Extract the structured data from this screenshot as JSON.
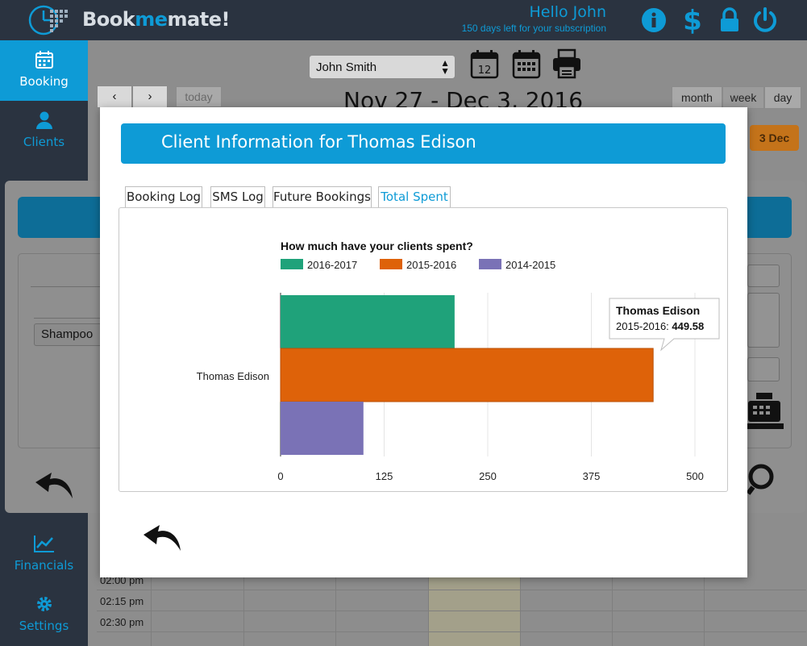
{
  "header": {
    "brand_prefix": "Book",
    "brand_accent": "me",
    "brand_suffix": "mate!",
    "greeting": "Hello John",
    "subscription": "150 days left for your subscription",
    "icons": [
      "info-icon",
      "dollar-icon",
      "lock-icon",
      "power-icon"
    ]
  },
  "sidebar": {
    "items": [
      {
        "label": "Booking",
        "icon": "calendar-icon",
        "active": true
      },
      {
        "label": "Clients",
        "icon": "user-icon",
        "active": false
      },
      {
        "label": "Financials",
        "icon": "chart-icon",
        "active": false
      },
      {
        "label": "Settings",
        "icon": "gear-icon",
        "active": false
      }
    ]
  },
  "calendar": {
    "staff": "John Smith",
    "day_badge": "12",
    "title": "Nov 27 - Dec 3, 2016",
    "today": "today",
    "views": [
      "month",
      "week",
      "day"
    ],
    "active_view": "week",
    "day_chip": "3 Dec",
    "times": [
      "02:00 pm",
      "02:15 pm",
      "02:30 pm"
    ]
  },
  "background_modal": {
    "service": "Shampoo"
  },
  "modal": {
    "title": "Client Information for Thomas Edison",
    "tabs": [
      "Booking Log",
      "SMS Log",
      "Future Bookings",
      "Total Spent"
    ],
    "active_tab": "Total Spent"
  },
  "chart_data": {
    "type": "bar",
    "orientation": "horizontal",
    "title": "How much have your clients spent?",
    "categories": [
      "Thomas Edison"
    ],
    "series": [
      {
        "name": "2016-2017",
        "values": [
          210
        ],
        "color": "#1fa27a"
      },
      {
        "name": "2015-2016",
        "values": [
          449.58
        ],
        "color": "#de6209"
      },
      {
        "name": "2014-2015",
        "values": [
          100
        ],
        "color": "#7a72b6"
      }
    ],
    "xlim": [
      0,
      500
    ],
    "xticks": [
      0,
      125,
      250,
      375,
      500
    ],
    "legend": "top",
    "grid": true,
    "tooltip": {
      "title": "Thomas Edison",
      "series": "2015-2016",
      "value": "449.58"
    }
  },
  "colors": {
    "accent": "#0e9bd6",
    "nav": "#2a3340"
  }
}
